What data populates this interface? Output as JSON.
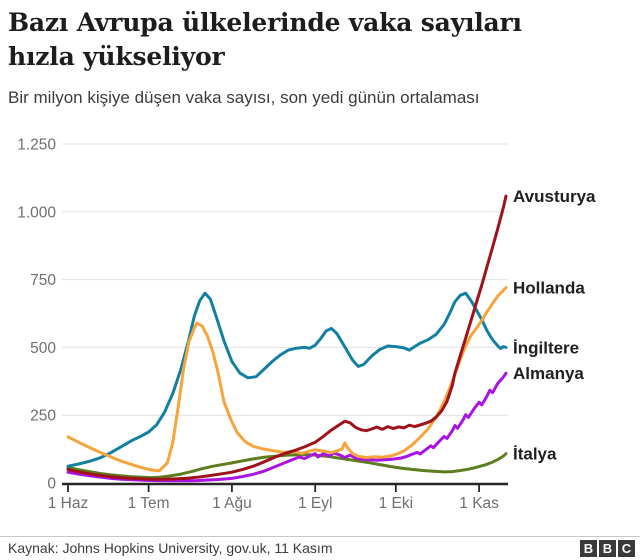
{
  "header": {
    "title_line1": "Bazı Avrupa ülkelerinde vaka sayıları",
    "title_line2": "hızla yükseliyor",
    "subtitle": "Bir milyon kişiye düşen vaka sayısı, son yedi günün ortalaması"
  },
  "footer": {
    "source": "Kaynak: Johns Hopkins University, gov.uk, 11 Kasım",
    "logo_letters": [
      "B",
      "B",
      "C"
    ]
  },
  "chart_data": {
    "type": "line",
    "title": "Bazı Avrupa ülkelerinde vaka sayıları hızla yükseliyor",
    "subtitle": "Bir milyon kişiye düşen vaka sayısı, son yedi günün ortalaması",
    "x_unit": "days since 1 Haziran",
    "x_max_day": 163,
    "x_tick_days": [
      0,
      30,
      61,
      92,
      122,
      153
    ],
    "x_tick_labels": [
      "1 Haz",
      "1 Tem",
      "1 Ağu",
      "1 Eyl",
      "1 Eki",
      "1 Kas"
    ],
    "ylim": [
      0,
      1250
    ],
    "y_ticks": [
      0,
      250,
      500,
      750,
      1000,
      1250
    ],
    "y_tick_labels": [
      "0",
      "250",
      "500",
      "750",
      "1.000",
      "1.250"
    ],
    "grid": true,
    "legend_position": "right-end-labels",
    "colors": {
      "grid": "#e2e2e2",
      "axis": "#262626",
      "tick_text": "#6e6e73",
      "label_text": "#202024"
    },
    "series": [
      {
        "name": "İtalya",
        "id": "italya",
        "color": "#5e7d1e",
        "points": [
          [
            0,
            57
          ],
          [
            4,
            49
          ],
          [
            8,
            42
          ],
          [
            12,
            35
          ],
          [
            16,
            30
          ],
          [
            20,
            26
          ],
          [
            24,
            23
          ],
          [
            28,
            21
          ],
          [
            31,
            20
          ],
          [
            34,
            21
          ],
          [
            38,
            26
          ],
          [
            42,
            33
          ],
          [
            46,
            42
          ],
          [
            50,
            53
          ],
          [
            54,
            62
          ],
          [
            58,
            69
          ],
          [
            61,
            74
          ],
          [
            65,
            82
          ],
          [
            69,
            89
          ],
          [
            73,
            95
          ],
          [
            77,
            99
          ],
          [
            81,
            102
          ],
          [
            85,
            104
          ],
          [
            88,
            105
          ],
          [
            92,
            103
          ],
          [
            96,
            99
          ],
          [
            100,
            93
          ],
          [
            104,
            87
          ],
          [
            108,
            81
          ],
          [
            112,
            75
          ],
          [
            116,
            68
          ],
          [
            120,
            61
          ],
          [
            124,
            55
          ],
          [
            128,
            50
          ],
          [
            132,
            46
          ],
          [
            136,
            43
          ],
          [
            140,
            41
          ],
          [
            143,
            42
          ],
          [
            146,
            46
          ],
          [
            149,
            51
          ],
          [
            152,
            58
          ],
          [
            155,
            66
          ],
          [
            158,
            77
          ],
          [
            160,
            87
          ],
          [
            162,
            99
          ],
          [
            163,
            108
          ]
        ]
      },
      {
        "name": "Almanya",
        "id": "almanya",
        "color": "#ab14e0",
        "points": [
          [
            0,
            40
          ],
          [
            4,
            33
          ],
          [
            8,
            27
          ],
          [
            12,
            22
          ],
          [
            16,
            17
          ],
          [
            20,
            14
          ],
          [
            24,
            12
          ],
          [
            28,
            10
          ],
          [
            32,
            9
          ],
          [
            36,
            8
          ],
          [
            40,
            8
          ],
          [
            44,
            8
          ],
          [
            48,
            9
          ],
          [
            52,
            11
          ],
          [
            56,
            13
          ],
          [
            61,
            17
          ],
          [
            65,
            24
          ],
          [
            69,
            32
          ],
          [
            73,
            44
          ],
          [
            77,
            60
          ],
          [
            81,
            76
          ],
          [
            84,
            88
          ],
          [
            86,
            96
          ],
          [
            88,
            90
          ],
          [
            90,
            100
          ],
          [
            92,
            108
          ],
          [
            93,
            96
          ],
          [
            95,
            108
          ],
          [
            97,
            100
          ],
          [
            99,
            110
          ],
          [
            101,
            104
          ],
          [
            103,
            94
          ],
          [
            105,
            103
          ],
          [
            107,
            92
          ],
          [
            109,
            88
          ],
          [
            112,
            86
          ],
          [
            115,
            84
          ],
          [
            118,
            86
          ],
          [
            121,
            88
          ],
          [
            124,
            92
          ],
          [
            126,
            98
          ],
          [
            128,
            106
          ],
          [
            130,
            113
          ],
          [
            131,
            107
          ],
          [
            133,
            122
          ],
          [
            135,
            137
          ],
          [
            136,
            130
          ],
          [
            138,
            152
          ],
          [
            140,
            172
          ],
          [
            141,
            164
          ],
          [
            143,
            192
          ],
          [
            144,
            212
          ],
          [
            145,
            202
          ],
          [
            147,
            232
          ],
          [
            148,
            252
          ],
          [
            149,
            242
          ],
          [
            151,
            272
          ],
          [
            153,
            298
          ],
          [
            154,
            288
          ],
          [
            156,
            322
          ],
          [
            157,
            342
          ],
          [
            158,
            333
          ],
          [
            160,
            368
          ],
          [
            162,
            390
          ],
          [
            163,
            405
          ]
        ]
      },
      {
        "name": "İngiltere",
        "id": "ingiltere",
        "color": "#1380a1",
        "points": [
          [
            0,
            62
          ],
          [
            4,
            70
          ],
          [
            8,
            80
          ],
          [
            12,
            93
          ],
          [
            16,
            112
          ],
          [
            20,
            135
          ],
          [
            24,
            158
          ],
          [
            27,
            172
          ],
          [
            30,
            188
          ],
          [
            33,
            215
          ],
          [
            36,
            262
          ],
          [
            39,
            330
          ],
          [
            42,
            420
          ],
          [
            45,
            530
          ],
          [
            47,
            615
          ],
          [
            49,
            672
          ],
          [
            51,
            700
          ],
          [
            53,
            678
          ],
          [
            55,
            618
          ],
          [
            58,
            525
          ],
          [
            61,
            448
          ],
          [
            64,
            405
          ],
          [
            67,
            388
          ],
          [
            70,
            392
          ],
          [
            73,
            420
          ],
          [
            76,
            448
          ],
          [
            79,
            472
          ],
          [
            82,
            490
          ],
          [
            85,
            497
          ],
          [
            88,
            500
          ],
          [
            90,
            497
          ],
          [
            92,
            508
          ],
          [
            94,
            532
          ],
          [
            96,
            560
          ],
          [
            98,
            570
          ],
          [
            100,
            552
          ],
          [
            103,
            502
          ],
          [
            106,
            452
          ],
          [
            108,
            430
          ],
          [
            110,
            437
          ],
          [
            113,
            468
          ],
          [
            116,
            492
          ],
          [
            119,
            505
          ],
          [
            122,
            503
          ],
          [
            125,
            498
          ],
          [
            127,
            490
          ],
          [
            129,
            503
          ],
          [
            131,
            515
          ],
          [
            134,
            528
          ],
          [
            137,
            548
          ],
          [
            140,
            585
          ],
          [
            142,
            625
          ],
          [
            144,
            668
          ],
          [
            146,
            692
          ],
          [
            148,
            700
          ],
          [
            150,
            672
          ],
          [
            152,
            638
          ],
          [
            154,
            602
          ],
          [
            156,
            560
          ],
          [
            158,
            528
          ],
          [
            160,
            505
          ],
          [
            161,
            496
          ],
          [
            162,
            503
          ],
          [
            163,
            500
          ]
        ]
      },
      {
        "name": "Hollanda",
        "id": "hollanda",
        "color": "#f6a43c",
        "points": [
          [
            0,
            170
          ],
          [
            4,
            150
          ],
          [
            8,
            131
          ],
          [
            12,
            113
          ],
          [
            16,
            96
          ],
          [
            20,
            80
          ],
          [
            24,
            67
          ],
          [
            28,
            55
          ],
          [
            31,
            48
          ],
          [
            34,
            45
          ],
          [
            37,
            75
          ],
          [
            39,
            150
          ],
          [
            41,
            280
          ],
          [
            43,
            420
          ],
          [
            45,
            520
          ],
          [
            47,
            572
          ],
          [
            48,
            590
          ],
          [
            50,
            578
          ],
          [
            52,
            540
          ],
          [
            54,
            480
          ],
          [
            56,
            400
          ],
          [
            58,
            300
          ],
          [
            60,
            250
          ],
          [
            61,
            225
          ],
          [
            63,
            185
          ],
          [
            66,
            152
          ],
          [
            69,
            135
          ],
          [
            72,
            127
          ],
          [
            76,
            120
          ],
          [
            80,
            113
          ],
          [
            84,
            116
          ],
          [
            87,
            109
          ],
          [
            90,
            118
          ],
          [
            92,
            122
          ],
          [
            95,
            118
          ],
          [
            98,
            112
          ],
          [
            100,
            118
          ],
          [
            102,
            125
          ],
          [
            103,
            148
          ],
          [
            104,
            130
          ],
          [
            106,
            108
          ],
          [
            108,
            98
          ],
          [
            111,
            94
          ],
          [
            114,
            97
          ],
          [
            117,
            95
          ],
          [
            120,
            100
          ],
          [
            122,
            105
          ],
          [
            125,
            118
          ],
          [
            128,
            140
          ],
          [
            131,
            168
          ],
          [
            134,
            200
          ],
          [
            137,
            242
          ],
          [
            140,
            300
          ],
          [
            142,
            348
          ],
          [
            144,
            400
          ],
          [
            146,
            455
          ],
          [
            148,
            505
          ],
          [
            150,
            545
          ],
          [
            152,
            570
          ],
          [
            154,
            600
          ],
          [
            156,
            632
          ],
          [
            158,
            662
          ],
          [
            160,
            690
          ],
          [
            162,
            710
          ],
          [
            163,
            720
          ]
        ]
      },
      {
        "name": "Avusturya",
        "id": "avusturya",
        "color": "#a0121a",
        "points": [
          [
            0,
            50
          ],
          [
            4,
            41
          ],
          [
            8,
            34
          ],
          [
            12,
            28
          ],
          [
            16,
            23
          ],
          [
            20,
            19
          ],
          [
            24,
            17
          ],
          [
            28,
            15
          ],
          [
            32,
            14
          ],
          [
            36,
            14
          ],
          [
            40,
            15
          ],
          [
            44,
            17
          ],
          [
            48,
            21
          ],
          [
            52,
            26
          ],
          [
            56,
            32
          ],
          [
            61,
            40
          ],
          [
            65,
            50
          ],
          [
            69,
            62
          ],
          [
            73,
            78
          ],
          [
            77,
            95
          ],
          [
            81,
            110
          ],
          [
            85,
            122
          ],
          [
            88,
            133
          ],
          [
            92,
            150
          ],
          [
            95,
            172
          ],
          [
            98,
            195
          ],
          [
            101,
            215
          ],
          [
            103,
            228
          ],
          [
            105,
            222
          ],
          [
            107,
            205
          ],
          [
            109,
            196
          ],
          [
            111,
            193
          ],
          [
            113,
            199
          ],
          [
            115,
            206
          ],
          [
            117,
            198
          ],
          [
            119,
            208
          ],
          [
            121,
            201
          ],
          [
            123,
            207
          ],
          [
            125,
            203
          ],
          [
            127,
            213
          ],
          [
            129,
            208
          ],
          [
            131,
            214
          ],
          [
            133,
            220
          ],
          [
            135,
            228
          ],
          [
            137,
            243
          ],
          [
            139,
            265
          ],
          [
            141,
            300
          ],
          [
            143,
            360
          ],
          [
            144,
            405
          ],
          [
            146,
            470
          ],
          [
            148,
            535
          ],
          [
            150,
            600
          ],
          [
            152,
            665
          ],
          [
            154,
            730
          ],
          [
            156,
            800
          ],
          [
            158,
            870
          ],
          [
            160,
            940
          ],
          [
            162,
            1015
          ],
          [
            163,
            1058
          ]
        ]
      }
    ]
  }
}
